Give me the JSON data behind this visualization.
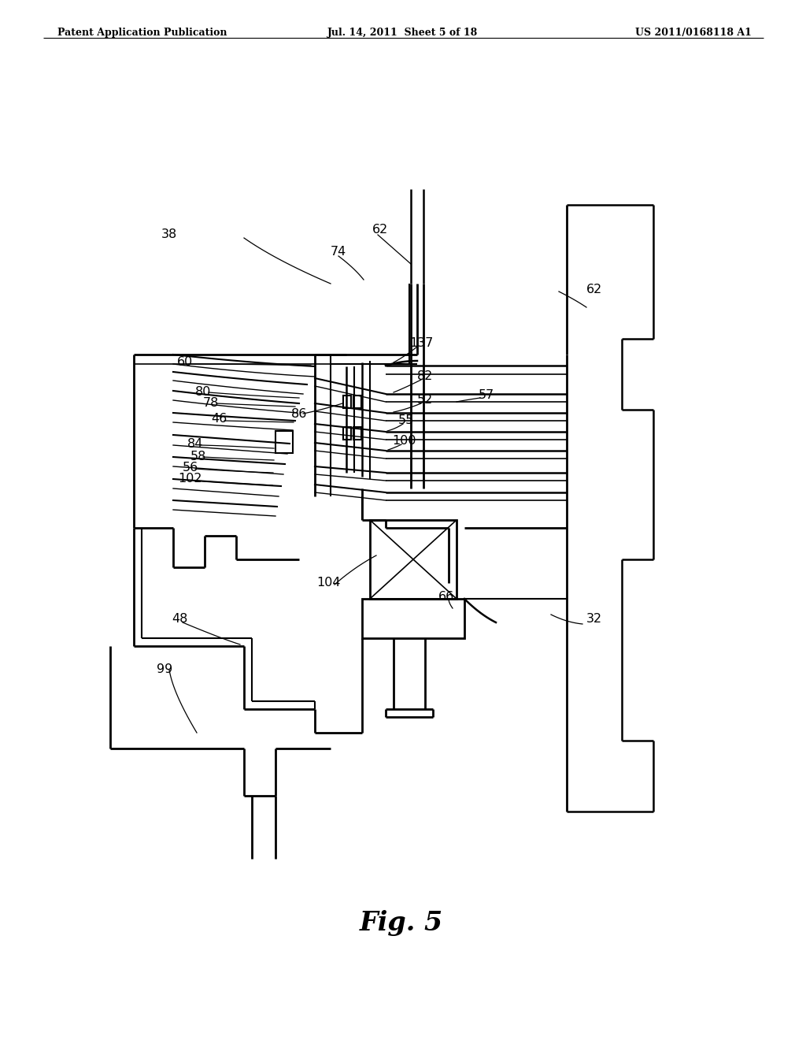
{
  "bg_color": "#ffffff",
  "header_left": "Patent Application Publication",
  "header_mid": "Jul. 14, 2011  Sheet 5 of 18",
  "header_right": "US 2011/0168118 A1",
  "fig_label": "Fig. 5"
}
